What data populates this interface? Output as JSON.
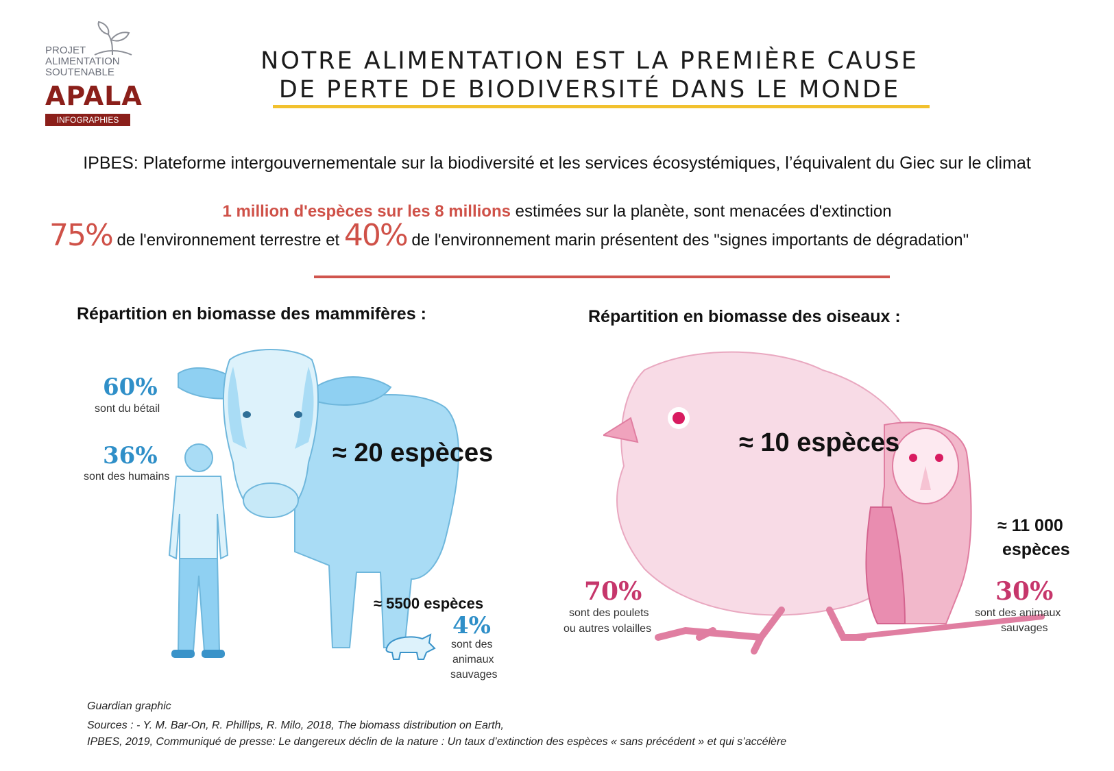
{
  "logo": {
    "line1": "PROJET",
    "line2": "ALIMENTATION",
    "line3": "SOUTENABLE",
    "brand": "APALA",
    "tag": "INFOGRAPHIES",
    "brand_color": "#8b1f1a",
    "icon": "sprout-icon"
  },
  "title": {
    "line1": "NOTRE ALIMENTATION EST LA PREMIÈRE CAUSE",
    "line2": "DE PERTE DE BIODIVERSITÉ DANS LE MONDE"
  },
  "ipbes_line": "IPBES: Plateforme intergouvernementale sur la biodiversité et les services écosystémiques, l’équivalent du Giec sur le climat",
  "stat1": {
    "highlight": "1 million d'espèces sur les 8 millions",
    "rest": " estimées sur la planète, sont menacées d'extinction"
  },
  "stat2": {
    "pct_land": "75%",
    "text_a": " de l'environnement terrestre et ",
    "pct_sea": "40%",
    "text_b": " de l'environnement marin présentent des \"signes importants de dégradation\""
  },
  "mammals": {
    "heading": "Répartition en biomasse des mammifères :",
    "livestock_pct": "60%",
    "livestock_label": "sont du bétail",
    "humans_pct": "36%",
    "humans_label": "sont des humains",
    "livestock_species": "≈ 20 espèces",
    "wild_species": "≈ 5500 espèces",
    "wild_pct": "4%",
    "wild_label_1": "sont  des",
    "wild_label_2": "animaux",
    "wild_label_3": "sauvages"
  },
  "birds": {
    "heading": "Répartition en biomasse des oiseaux :",
    "poultry_species": "≈ 10 espèces",
    "poultry_pct": "70%",
    "poultry_label_1": "sont des poulets",
    "poultry_label_2": "ou autres volailles",
    "wild_species_1": "≈ 11 000",
    "wild_species_2": "espèces",
    "wild_pct": "30%",
    "wild_label_1": "sont des animaux",
    "wild_label_2": "sauvages"
  },
  "footer": {
    "credit": "Guardian graphic",
    "sources_1": "Sources : - Y. M. Bar-On, R. Phillips, R. Milo, 2018, The biomass distribution on Earth,",
    "sources_2": "IPBES, 2019, Communiqué de presse: Le dangereux déclin de la nature : Un taux d’extinction des espèces « sans précédent » et qui s’accélère"
  },
  "colors": {
    "accent_yellow": "#f2c12e",
    "accent_red": "#cf5148",
    "mammal_blue": "#2f8fc8",
    "bird_pink": "#c6366b"
  }
}
